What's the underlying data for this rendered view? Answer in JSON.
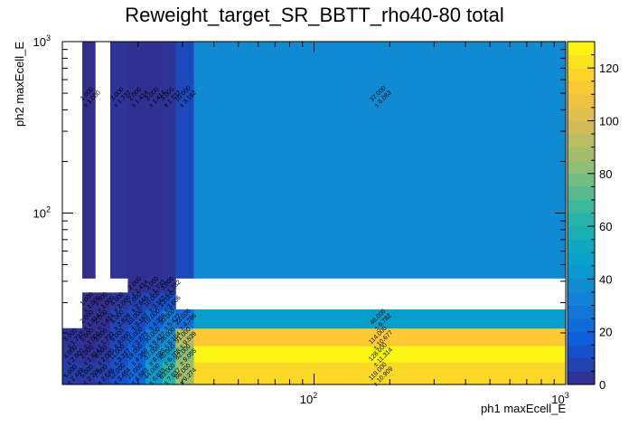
{
  "chart_data": {
    "type": "heatmap",
    "title": "Reweight_target_SR_BBTT_rho40-80 total",
    "xlabel": "ph1 maxEcell_E",
    "ylabel": "ph2 maxEcell_E",
    "x_scale": "log",
    "y_scale": "log",
    "xlim": [
      10,
      1000
    ],
    "ylim": [
      10,
      1000
    ],
    "x_ticks": [
      {
        "value": 100,
        "label": "10",
        "exp": "2"
      },
      {
        "value": 1000,
        "label": "10",
        "exp": "3"
      }
    ],
    "y_ticks": [
      {
        "value": 100,
        "label": "10",
        "exp": "2"
      },
      {
        "value": 1000,
        "label": "10",
        "exp": "3"
      }
    ],
    "z_range": [
      0,
      130
    ],
    "z_ticks": [
      "0",
      "20",
      "40",
      "60",
      "80",
      "100",
      "120"
    ],
    "x_edges": [
      10,
      12.0,
      13.5,
      15.5,
      18.2,
      21.4,
      25,
      28.2,
      33.3,
      1000
    ],
    "y_edges": [
      10,
      13.5,
      16.8,
      21.3,
      27.4,
      34.4,
      41.7,
      1000
    ],
    "cells": [
      {
        "xi": 0,
        "yi": 0,
        "value": 6,
        "value_label": "6.000",
        "error_label": "2.449"
      },
      {
        "xi": 0,
        "yi": 1,
        "value": 4,
        "value_label": "4.000",
        "error_label": "2.000"
      },
      {
        "xi": 0,
        "yi": 2,
        "value": 3,
        "value_label": "3.000",
        "error_label": "1.732"
      },
      {
        "xi": 1,
        "yi": 0,
        "value": 5,
        "value_label": "5.000",
        "error_label": "2.236"
      },
      {
        "xi": 1,
        "yi": 1,
        "value": 2,
        "value_label": "2.000",
        "error_label": "1.414"
      },
      {
        "xi": 1,
        "yi": 2,
        "value": 1,
        "value_label": "1.000",
        "error_label": "1.000"
      },
      {
        "xi": 1,
        "yi": 3,
        "value": 2,
        "value_label": "2.000",
        "error_label": "1.414"
      },
      {
        "xi": 1,
        "yi": 4,
        "value": 1,
        "value_label": "1.000",
        "error_label": "1.000"
      },
      {
        "xi": 1,
        "yi": 6,
        "value": 1,
        "value_label": "1.000",
        "error_label": "1.000"
      },
      {
        "xi": 2,
        "yi": 0,
        "value": 7,
        "value_label": "7.000",
        "error_label": "2.646"
      },
      {
        "xi": 2,
        "yi": 1,
        "value": 4,
        "value_label": "4.000",
        "error_label": "2.000"
      },
      {
        "xi": 2,
        "yi": 2,
        "value": 3,
        "value_label": "3.000",
        "error_label": "1.732"
      },
      {
        "xi": 2,
        "yi": 3,
        "value": 2,
        "value_label": "2.000",
        "error_label": "1.414"
      },
      {
        "xi": 2,
        "yi": 4,
        "value": 1,
        "value_label": "1.000",
        "error_label": "1.000"
      },
      {
        "xi": 3,
        "yi": 0,
        "value": 12,
        "value_label": "12.000",
        "error_label": "3.464"
      },
      {
        "xi": 3,
        "yi": 1,
        "value": 11,
        "value_label": "11.000",
        "error_label": "3.317"
      },
      {
        "xi": 3,
        "yi": 2,
        "value": 9,
        "value_label": "9.000",
        "error_label": "3.000"
      },
      {
        "xi": 3,
        "yi": 3,
        "value": 8,
        "value_label": "8.000",
        "error_label": "2.828"
      },
      {
        "xi": 3,
        "yi": 4,
        "value": 4,
        "value_label": "4.000",
        "error_label": "2.000"
      },
      {
        "xi": 3,
        "yi": 6,
        "value": 3,
        "value_label": "3.000",
        "error_label": "1.732"
      },
      {
        "xi": 4,
        "yi": 0,
        "value": 21,
        "value_label": "21.000",
        "error_label": "4.583"
      },
      {
        "xi": 4,
        "yi": 1,
        "value": 19,
        "value_label": "19.000",
        "error_label": "4.359"
      },
      {
        "xi": 4,
        "yi": 2,
        "value": 15,
        "value_label": "15.000",
        "error_label": "3.873"
      },
      {
        "xi": 4,
        "yi": 3,
        "value": 10,
        "value_label": "10.000",
        "error_label": "3.162"
      },
      {
        "xi": 4,
        "yi": 4,
        "value": 7,
        "value_label": "7.000",
        "error_label": "2.646"
      },
      {
        "xi": 4,
        "yi": 5,
        "value": 2,
        "value_label": "2.000",
        "error_label": "1.414"
      },
      {
        "xi": 4,
        "yi": 6,
        "value": 2,
        "value_label": "2.000",
        "error_label": "1.414"
      },
      {
        "xi": 5,
        "yi": 0,
        "value": 44,
        "value_label": "44.000",
        "error_label": "6.633"
      },
      {
        "xi": 5,
        "yi": 1,
        "value": 37,
        "value_label": "37.000",
        "error_label": "6.083"
      },
      {
        "xi": 5,
        "yi": 2,
        "value": 30,
        "value_label": "30.000",
        "error_label": "5.477"
      },
      {
        "xi": 5,
        "yi": 3,
        "value": 19,
        "value_label": "19.000",
        "error_label": "4.359"
      },
      {
        "xi": 5,
        "yi": 4,
        "value": 10,
        "value_label": "10.000",
        "error_label": "3.162"
      },
      {
        "xi": 5,
        "yi": 5,
        "value": 3,
        "value_label": "3.000",
        "error_label": "1.732"
      },
      {
        "xi": 5,
        "yi": 6,
        "value": 2,
        "value_label": "2.000",
        "error_label": "1.414"
      },
      {
        "xi": 6,
        "yi": 0,
        "value": 63,
        "value_label": "63.000",
        "error_label": "7.937"
      },
      {
        "xi": 6,
        "yi": 1,
        "value": 45,
        "value_label": "45.000",
        "error_label": "6.708"
      },
      {
        "xi": 6,
        "yi": 2,
        "value": 38,
        "value_label": "38.000",
        "error_label": "6.164"
      },
      {
        "xi": 6,
        "yi": 3,
        "value": 30,
        "value_label": "30.000",
        "error_label": "5.477"
      },
      {
        "xi": 6,
        "yi": 4,
        "value": 13,
        "value_label": "13.000",
        "error_label": "3.606"
      },
      {
        "xi": 6,
        "yi": 5,
        "value": 3,
        "value_label": "3.000",
        "error_label": "1.732"
      },
      {
        "xi": 6,
        "yi": 6,
        "value": 3,
        "value_label": "3.000",
        "error_label": "1.732"
      },
      {
        "xi": 7,
        "yi": 0,
        "value": 86,
        "value_label": "86.000",
        "error_label": "9.274"
      },
      {
        "xi": 7,
        "yi": 1,
        "value": 82,
        "value_label": "82.000",
        "error_label": "9.055"
      },
      {
        "xi": 7,
        "yi": 2,
        "value": 91,
        "value_label": "91.000",
        "error_label": "9.539"
      },
      {
        "xi": 7,
        "yi": 3,
        "value": 23,
        "value_label": "23.000",
        "error_label": "4.796"
      },
      {
        "xi": 7,
        "yi": 6,
        "value": 10,
        "value_label": "10.000",
        "error_label": "3.162"
      },
      {
        "xi": 8,
        "yi": 0,
        "value": 119,
        "value_label": "119.000",
        "error_label": "10.909"
      },
      {
        "xi": 8,
        "yi": 1,
        "value": 128,
        "value_label": "128.000",
        "error_label": "11.314"
      },
      {
        "xi": 8,
        "yi": 2,
        "value": 114,
        "value_label": "114.000",
        "error_label": "10.677"
      },
      {
        "xi": 8,
        "yi": 3,
        "value": 46,
        "value_label": "46.000",
        "error_label": "6.782"
      },
      {
        "xi": 8,
        "yi": 6,
        "value": 37,
        "value_label": "37.000",
        "error_label": "6.083"
      }
    ],
    "colors": {
      "palette": [
        "#352a87",
        "#0f5cdd",
        "#1481d6",
        "#06a4ca",
        "#2eb7a4",
        "#87bf77",
        "#d1bb59",
        "#fec832",
        "#f9fb0e"
      ],
      "frame": "#000000",
      "text": "#000000",
      "background": "#ffffff"
    }
  }
}
